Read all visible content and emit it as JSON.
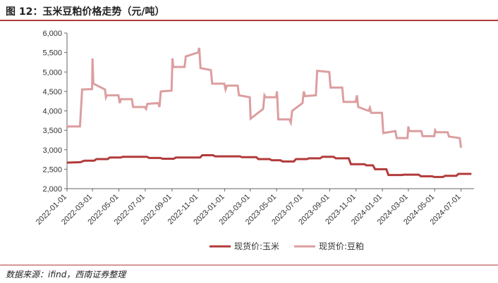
{
  "header": {
    "title": "图 12：玉米豆粕价格走势（元/吨）"
  },
  "footer": {
    "source": "数据来源：ifind，西南证券整理"
  },
  "chart_data": {
    "type": "line",
    "title": "图 12：玉米豆粕价格走势（元/吨）",
    "xlabel": "",
    "ylabel": "",
    "xlim": [
      "2022-01-01",
      "2024-07-31"
    ],
    "ylim": [
      2000,
      6000
    ],
    "y_ticks": [
      2000,
      2500,
      3000,
      3500,
      4000,
      4500,
      5000,
      5500,
      6000
    ],
    "y_tick_labels": [
      "2,000",
      "2,500",
      "3,000",
      "3,500",
      "4,000",
      "4,500",
      "5,000",
      "5,500",
      "6,000"
    ],
    "x_ticks": [
      "2022-01-01",
      "2022-03-01",
      "2022-05-01",
      "2022-07-01",
      "2022-09-01",
      "2022-11-01",
      "2023-01-01",
      "2023-03-01",
      "2023-05-01",
      "2023-07-01",
      "2023-09-01",
      "2023-11-01",
      "2024-01-01",
      "2024-03-01",
      "2024-05-01",
      "2024-07-01"
    ],
    "grid": false,
    "legend_position": "bottom",
    "series": [
      {
        "name": "现货价:玉米",
        "color": "#b23a3a",
        "stroke_width": 3,
        "points": [
          [
            "2022-01-01",
            2670
          ],
          [
            "2022-02-01",
            2680
          ],
          [
            "2022-02-10",
            2720
          ],
          [
            "2022-03-05",
            2720
          ],
          [
            "2022-03-10",
            2760
          ],
          [
            "2022-04-05",
            2760
          ],
          [
            "2022-04-10",
            2800
          ],
          [
            "2022-05-05",
            2800
          ],
          [
            "2022-05-10",
            2820
          ],
          [
            "2022-07-05",
            2820
          ],
          [
            "2022-07-10",
            2790
          ],
          [
            "2022-08-05",
            2790
          ],
          [
            "2022-08-10",
            2770
          ],
          [
            "2022-09-05",
            2770
          ],
          [
            "2022-09-10",
            2800
          ],
          [
            "2022-11-05",
            2800
          ],
          [
            "2022-11-10",
            2860
          ],
          [
            "2022-12-05",
            2860
          ],
          [
            "2022-12-10",
            2830
          ],
          [
            "2023-02-05",
            2830
          ],
          [
            "2023-02-10",
            2810
          ],
          [
            "2023-03-15",
            2810
          ],
          [
            "2023-03-20",
            2760
          ],
          [
            "2023-04-15",
            2760
          ],
          [
            "2023-04-20",
            2730
          ],
          [
            "2023-05-10",
            2730
          ],
          [
            "2023-05-15",
            2700
          ],
          [
            "2023-06-10",
            2700
          ],
          [
            "2023-06-15",
            2760
          ],
          [
            "2023-07-10",
            2760
          ],
          [
            "2023-07-15",
            2780
          ],
          [
            "2023-08-10",
            2780
          ],
          [
            "2023-08-15",
            2820
          ],
          [
            "2023-09-10",
            2820
          ],
          [
            "2023-09-15",
            2780
          ],
          [
            "2023-10-15",
            2780
          ],
          [
            "2023-10-20",
            2630
          ],
          [
            "2023-11-20",
            2630
          ],
          [
            "2023-11-25",
            2600
          ],
          [
            "2023-12-10",
            2600
          ],
          [
            "2023-12-15",
            2500
          ],
          [
            "2024-01-10",
            2500
          ],
          [
            "2024-01-15",
            2350
          ],
          [
            "2024-02-15",
            2350
          ],
          [
            "2024-02-20",
            2360
          ],
          [
            "2024-03-25",
            2360
          ],
          [
            "2024-03-30",
            2320
          ],
          [
            "2024-04-25",
            2320
          ],
          [
            "2024-04-30",
            2300
          ],
          [
            "2024-05-20",
            2300
          ],
          [
            "2024-05-25",
            2330
          ],
          [
            "2024-06-20",
            2330
          ],
          [
            "2024-06-25",
            2380
          ],
          [
            "2024-07-25",
            2380
          ]
        ]
      },
      {
        "name": "现货价:豆粕",
        "color": "#dc9ea0",
        "stroke_width": 3,
        "points": [
          [
            "2022-01-01",
            3550
          ],
          [
            "2022-01-02",
            3600
          ],
          [
            "2022-01-31",
            3600
          ],
          [
            "2022-02-05",
            4550
          ],
          [
            "2022-02-28",
            4560
          ],
          [
            "2022-03-01",
            5350
          ],
          [
            "2022-03-03",
            4700
          ],
          [
            "2022-03-30",
            4550
          ],
          [
            "2022-04-01",
            4350
          ],
          [
            "2022-04-03",
            4400
          ],
          [
            "2022-04-30",
            4400
          ],
          [
            "2022-05-03",
            4200
          ],
          [
            "2022-05-06",
            4300
          ],
          [
            "2022-05-31",
            4300
          ],
          [
            "2022-06-03",
            4100
          ],
          [
            "2022-06-30",
            4100
          ],
          [
            "2022-07-03",
            4050
          ],
          [
            "2022-07-06",
            4180
          ],
          [
            "2022-07-31",
            4200
          ],
          [
            "2022-08-03",
            4100
          ],
          [
            "2022-08-06",
            4500
          ],
          [
            "2022-08-31",
            4520
          ],
          [
            "2022-09-02",
            5350
          ],
          [
            "2022-09-04",
            5130
          ],
          [
            "2022-09-30",
            5130
          ],
          [
            "2022-10-03",
            5400
          ],
          [
            "2022-10-31",
            5500
          ],
          [
            "2022-11-03",
            5620
          ],
          [
            "2022-11-06",
            5100
          ],
          [
            "2022-11-30",
            5050
          ],
          [
            "2022-12-03",
            4700
          ],
          [
            "2022-12-31",
            4700
          ],
          [
            "2023-01-03",
            4550
          ],
          [
            "2023-01-06",
            4650
          ],
          [
            "2023-01-31",
            4650
          ],
          [
            "2023-02-03",
            4400
          ],
          [
            "2023-02-28",
            4350
          ],
          [
            "2023-03-02",
            3800
          ],
          [
            "2023-03-31",
            4050
          ],
          [
            "2023-04-03",
            4400
          ],
          [
            "2023-04-06",
            4350
          ],
          [
            "2023-04-30",
            4350
          ],
          [
            "2023-05-02",
            4500
          ],
          [
            "2023-05-05",
            3780
          ],
          [
            "2023-05-31",
            3780
          ],
          [
            "2023-06-03",
            3700
          ],
          [
            "2023-06-06",
            4000
          ],
          [
            "2023-06-30",
            4200
          ],
          [
            "2023-07-03",
            4500
          ],
          [
            "2023-07-06",
            4380
          ],
          [
            "2023-07-31",
            4400
          ],
          [
            "2023-08-03",
            5030
          ],
          [
            "2023-08-31",
            5000
          ],
          [
            "2023-09-03",
            4600
          ],
          [
            "2023-09-30",
            4600
          ],
          [
            "2023-10-03",
            4230
          ],
          [
            "2023-10-31",
            4230
          ],
          [
            "2023-11-03",
            4400
          ],
          [
            "2023-11-06",
            4100
          ],
          [
            "2023-11-30",
            4000
          ],
          [
            "2023-12-03",
            4080
          ],
          [
            "2023-12-06",
            3950
          ],
          [
            "2023-12-31",
            3950
          ],
          [
            "2024-01-03",
            3430
          ],
          [
            "2024-01-31",
            3480
          ],
          [
            "2024-02-03",
            3300
          ],
          [
            "2024-02-28",
            3300
          ],
          [
            "2024-03-01",
            3600
          ],
          [
            "2024-03-03",
            3480
          ],
          [
            "2024-03-31",
            3480
          ],
          [
            "2024-04-03",
            3350
          ],
          [
            "2024-04-30",
            3350
          ],
          [
            "2024-05-02",
            3500
          ],
          [
            "2024-05-05",
            3450
          ],
          [
            "2024-05-31",
            3450
          ],
          [
            "2024-06-03",
            3340
          ],
          [
            "2024-06-28",
            3300
          ],
          [
            "2024-07-01",
            3050
          ]
        ]
      }
    ]
  }
}
